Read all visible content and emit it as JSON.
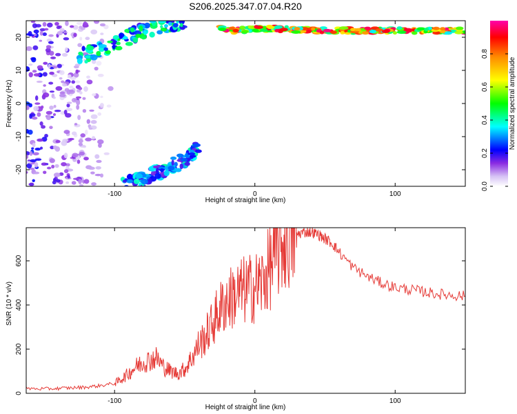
{
  "title": "S206.2025.347.07.04.R20",
  "chart_data": [
    {
      "type": "heatmap",
      "xlabel": "Height of straight line (km)",
      "ylabel": "Frequency (Hz)",
      "xlim": [
        -163,
        150
      ],
      "ylim": [
        -25,
        25
      ],
      "x_ticks": [
        -100,
        0,
        100
      ],
      "y_ticks": [
        -20,
        -10,
        0,
        10,
        20
      ],
      "colorbar": {
        "label": "Normalized spectral amplitude",
        "range": [
          0,
          1
        ],
        "ticks": [
          "0.0",
          "0.2",
          "0.4",
          "0.6",
          "0.8"
        ],
        "colors": [
          "#ffffff",
          "#d6c2f5",
          "#8a2be2",
          "#0000ff",
          "#00ffff",
          "#00ff00",
          "#ffff00",
          "#ff8c00",
          "#ff0000",
          "#ff00aa"
        ]
      },
      "features": [
        {
          "name": "scattered background",
          "x_range": [
            -163,
            -100
          ],
          "y_range": [
            -25,
            25
          ],
          "amplitude": 0.15
        },
        {
          "name": "upper branch",
          "x_points": [
            -125,
            -100,
            -80,
            -60,
            -50
          ],
          "y_points": [
            14,
            18,
            22,
            24,
            25
          ],
          "amplitude": 0.35
        },
        {
          "name": "lower branch",
          "x_points": [
            -95,
            -80,
            -65,
            -50,
            -40
          ],
          "y_points": [
            -25,
            -23,
            -20,
            -17,
            -13
          ],
          "amplitude": 0.3
        },
        {
          "name": "steady tone",
          "x_points": [
            -25,
            -15,
            0,
            20,
            50,
            80,
            100,
            150
          ],
          "y_points": [
            23,
            22,
            22.5,
            22.5,
            22,
            22,
            22,
            22
          ],
          "amplitude": 0.7
        }
      ]
    },
    {
      "type": "line",
      "xlabel": "Height of straight line (km)",
      "ylabel": "SNR (10 * v/v)",
      "xlim": [
        -163,
        150
      ],
      "ylim": [
        0,
        750
      ],
      "x_ticks": [
        -100,
        0,
        100
      ],
      "y_ticks": [
        0,
        200,
        400,
        600
      ],
      "series": [
        {
          "color": "#e53935",
          "x": [
            -163,
            -150,
            -140,
            -130,
            -120,
            -110,
            -100,
            -95,
            -90,
            -85,
            -80,
            -75,
            -70,
            -65,
            -60,
            -55,
            -50,
            -45,
            -40,
            -35,
            -30,
            -25,
            -20,
            -15,
            -10,
            -5,
            0,
            5,
            10,
            15,
            20,
            25,
            30,
            35,
            40,
            45,
            50,
            55,
            60,
            70,
            80,
            90,
            100,
            110,
            120,
            130,
            140,
            150
          ],
          "y": [
            22,
            20,
            22,
            25,
            28,
            35,
            45,
            65,
            90,
            120,
            140,
            150,
            160,
            120,
            100,
            90,
            110,
            160,
            220,
            260,
            320,
            380,
            420,
            440,
            460,
            470,
            480,
            500,
            560,
            630,
            680,
            700,
            720,
            730,
            730,
            720,
            700,
            680,
            640,
            570,
            530,
            500,
            480,
            470,
            460,
            450,
            445,
            440
          ]
        }
      ]
    }
  ]
}
